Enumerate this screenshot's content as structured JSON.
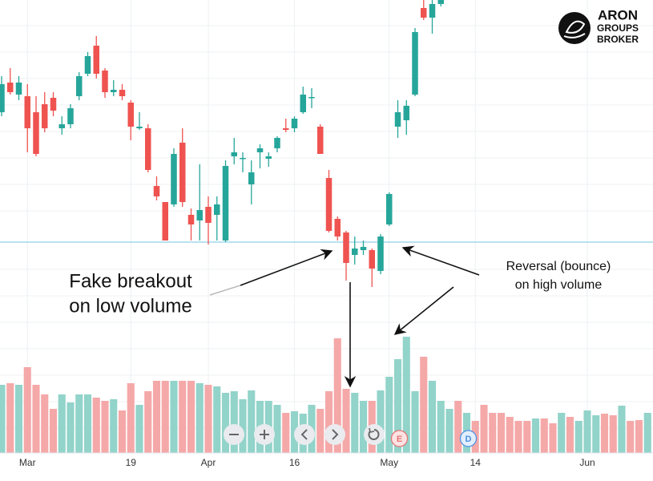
{
  "chart_data": {
    "type": "candlestick",
    "categories": [
      null,
      null,
      null,
      "Mar",
      null,
      null,
      null,
      null,
      null,
      null,
      null,
      null,
      null,
      null,
      null,
      "19",
      null,
      null,
      null,
      null,
      null,
      null,
      null,
      null,
      "Apr",
      null,
      null,
      null,
      null,
      null,
      null,
      null,
      null,
      null,
      "16",
      null,
      null,
      null,
      null,
      null,
      null,
      null,
      null,
      null,
      null,
      "May",
      null,
      null,
      null,
      null,
      null,
      null,
      null,
      null,
      null,
      "14",
      null,
      null,
      null,
      null,
      null,
      null,
      null,
      null,
      null,
      null,
      null,
      null,
      "Jun",
      null,
      null,
      null,
      null,
      null,
      null,
      null
    ],
    "open": [
      85,
      92.4,
      89.4,
      89,
      85,
      87,
      88.6,
      81,
      82,
      89,
      94.6,
      101.6,
      95.4,
      90,
      90.6,
      87.4,
      81,
      81,
      66.6,
      62.6,
      62,
      77.4,
      59.4,
      58,
      61.4,
      59.4,
      53,
      74,
      73.4,
      67,
      75,
      73.4,
      76,
      81,
      81,
      85,
      88.6,
      81.4,
      68.6,
      58.4,
      55,
      49.4,
      50.6,
      50.6,
      45.4,
      57,
      81.4,
      83,
      89.4,
      111,
      108.6,
      112,
      null,
      null,
      null,
      null,
      null,
      null,
      null,
      null,
      null,
      null,
      null,
      null,
      null,
      null,
      null,
      null,
      null,
      null,
      null,
      null,
      null,
      null,
      null,
      null
    ],
    "high": [
      94,
      96,
      94,
      92,
      89,
      90,
      90,
      84,
      87,
      95,
      100,
      104,
      96,
      93,
      92,
      88,
      85,
      82,
      69,
      62.6,
      76,
      81,
      61,
      72,
      64,
      64,
      73,
      78.6,
      75,
      73,
      77,
      75,
      79,
      83.4,
      84,
      91.4,
      91,
      82,
      70.6,
      59,
      55.4,
      54,
      53,
      51,
      54.6,
      65,
      88,
      88,
      106,
      113,
      113,
      113,
      null,
      null,
      null,
      null,
      null,
      null,
      null,
      null,
      null,
      null,
      null,
      null,
      null,
      null,
      null,
      null,
      null,
      null,
      null,
      null,
      null,
      null,
      null,
      null
    ],
    "low": [
      84,
      89.4,
      88,
      75,
      74,
      80,
      84,
      79.4,
      81,
      88,
      94,
      93.4,
      88.6,
      89,
      88,
      78,
      80.6,
      70,
      63,
      53,
      61.4,
      61.4,
      53,
      53,
      52,
      53,
      52.6,
      72,
      70,
      62,
      71,
      71.4,
      75,
      80,
      80,
      84.6,
      86,
      74.6,
      55,
      53,
      43,
      47,
      49.4,
      41.4,
      44.6,
      56.6,
      78.6,
      79.4,
      89,
      108,
      104.6,
      111.4,
      null,
      null,
      null,
      null,
      null,
      null,
      null,
      null,
      null,
      null,
      null,
      null,
      null,
      null,
      null,
      null,
      null,
      null,
      null,
      null,
      null,
      null,
      null,
      null
    ],
    "close": [
      92,
      90,
      92.4,
      81,
      74.6,
      81,
      85.4,
      82,
      86,
      94,
      99,
      94.6,
      90,
      90.6,
      89,
      81.4,
      81.4,
      70.6,
      64,
      53,
      74.6,
      62.6,
      57,
      60.6,
      57.4,
      62,
      71.6,
      75,
      73.6,
      70,
      76,
      74,
      78.6,
      80.6,
      83.4,
      89.4,
      88.8,
      74.6,
      55.4,
      54,
      47.4,
      51,
      51.4,
      46,
      54,
      64.6,
      85,
      86.6,
      105,
      108.6,
      112,
      113,
      null,
      null,
      null,
      null,
      null,
      null,
      null,
      null,
      null,
      null,
      null,
      null,
      null,
      null,
      null,
      null,
      null,
      null,
      null,
      null,
      null,
      null,
      null,
      null
    ],
    "up_color": "#26a69a",
    "down_color": "#ef5350",
    "ylim": [
      0,
      113
    ],
    "support_level": 52.6,
    "support_color": "#8fd0e6",
    "volume": {
      "values": [
        17,
        17.4,
        17,
        21.4,
        17,
        14.6,
        11,
        14.6,
        12.6,
        14.6,
        14.6,
        13.8,
        13,
        13.4,
        10.6,
        17.4,
        12,
        15.4,
        18,
        18,
        18,
        18,
        18,
        17.4,
        17,
        16.6,
        15,
        15.4,
        13.4,
        15.6,
        13,
        13,
        12,
        10,
        10.4,
        9.8,
        12,
        11,
        15.4,
        28.6,
        16,
        15,
        13,
        13,
        15.6,
        19,
        23.4,
        29,
        15.4,
        24,
        18,
        13,
        11,
        13,
        10,
        8,
        12,
        10,
        10,
        9,
        8,
        8,
        8.6,
        8.6,
        7.4,
        10,
        9,
        8,
        10.6,
        9.4,
        9.8,
        9.4,
        11.8,
        8,
        8.2,
        10
      ],
      "directions": [
        "up",
        "down",
        "up",
        "down",
        "down",
        "down",
        "down",
        "up",
        "up",
        "up",
        "up",
        "down",
        "down",
        "up",
        "down",
        "down",
        "up",
        "down",
        "down",
        "down",
        "up",
        "down",
        "down",
        "up",
        "down",
        "up",
        "up",
        "up",
        "up",
        "up",
        "up",
        "up",
        "up",
        "down",
        "up",
        "up",
        "up",
        "down",
        "down",
        "down",
        "down",
        "up",
        "up",
        "down",
        "up",
        "up",
        "up",
        "up",
        "up",
        "down",
        "up",
        "up",
        "up",
        "down",
        "up",
        "down",
        "down",
        "down",
        "down",
        "down",
        "down",
        "down",
        "up",
        "down",
        "down",
        "up",
        "down",
        "up",
        "up",
        "up",
        "down",
        "down",
        "up",
        "down",
        "down",
        "up"
      ],
      "colors": {
        "up": "#92d3ca",
        "down": "#f5a8a8"
      },
      "ylim": [
        0,
        40
      ]
    },
    "event_labels": [
      null,
      null,
      null,
      null,
      null,
      null,
      null,
      null,
      null,
      null,
      null,
      null,
      null,
      null,
      null,
      null,
      null,
      null,
      null,
      null,
      null,
      null,
      null,
      null,
      null,
      null,
      null,
      null,
      null,
      null,
      null,
      null,
      null,
      null,
      null,
      null,
      null,
      null,
      null,
      null,
      null,
      null,
      null,
      null,
      null,
      null,
      "E",
      null,
      null,
      null,
      null,
      null,
      null,
      null,
      "D",
      null,
      null,
      null,
      null,
      null,
      null,
      null,
      null,
      null,
      null,
      null,
      null,
      null,
      null,
      null,
      null,
      null,
      null,
      null,
      null,
      null
    ],
    "annotations": [
      {
        "lines": [
          "Fake breakout",
          "on low volume"
        ]
      },
      {
        "lines": [
          "Reversal (bounce)",
          "on high volume"
        ]
      }
    ]
  },
  "logo": {
    "lines": [
      "ARON",
      "GROUPS",
      "BROKER"
    ]
  }
}
